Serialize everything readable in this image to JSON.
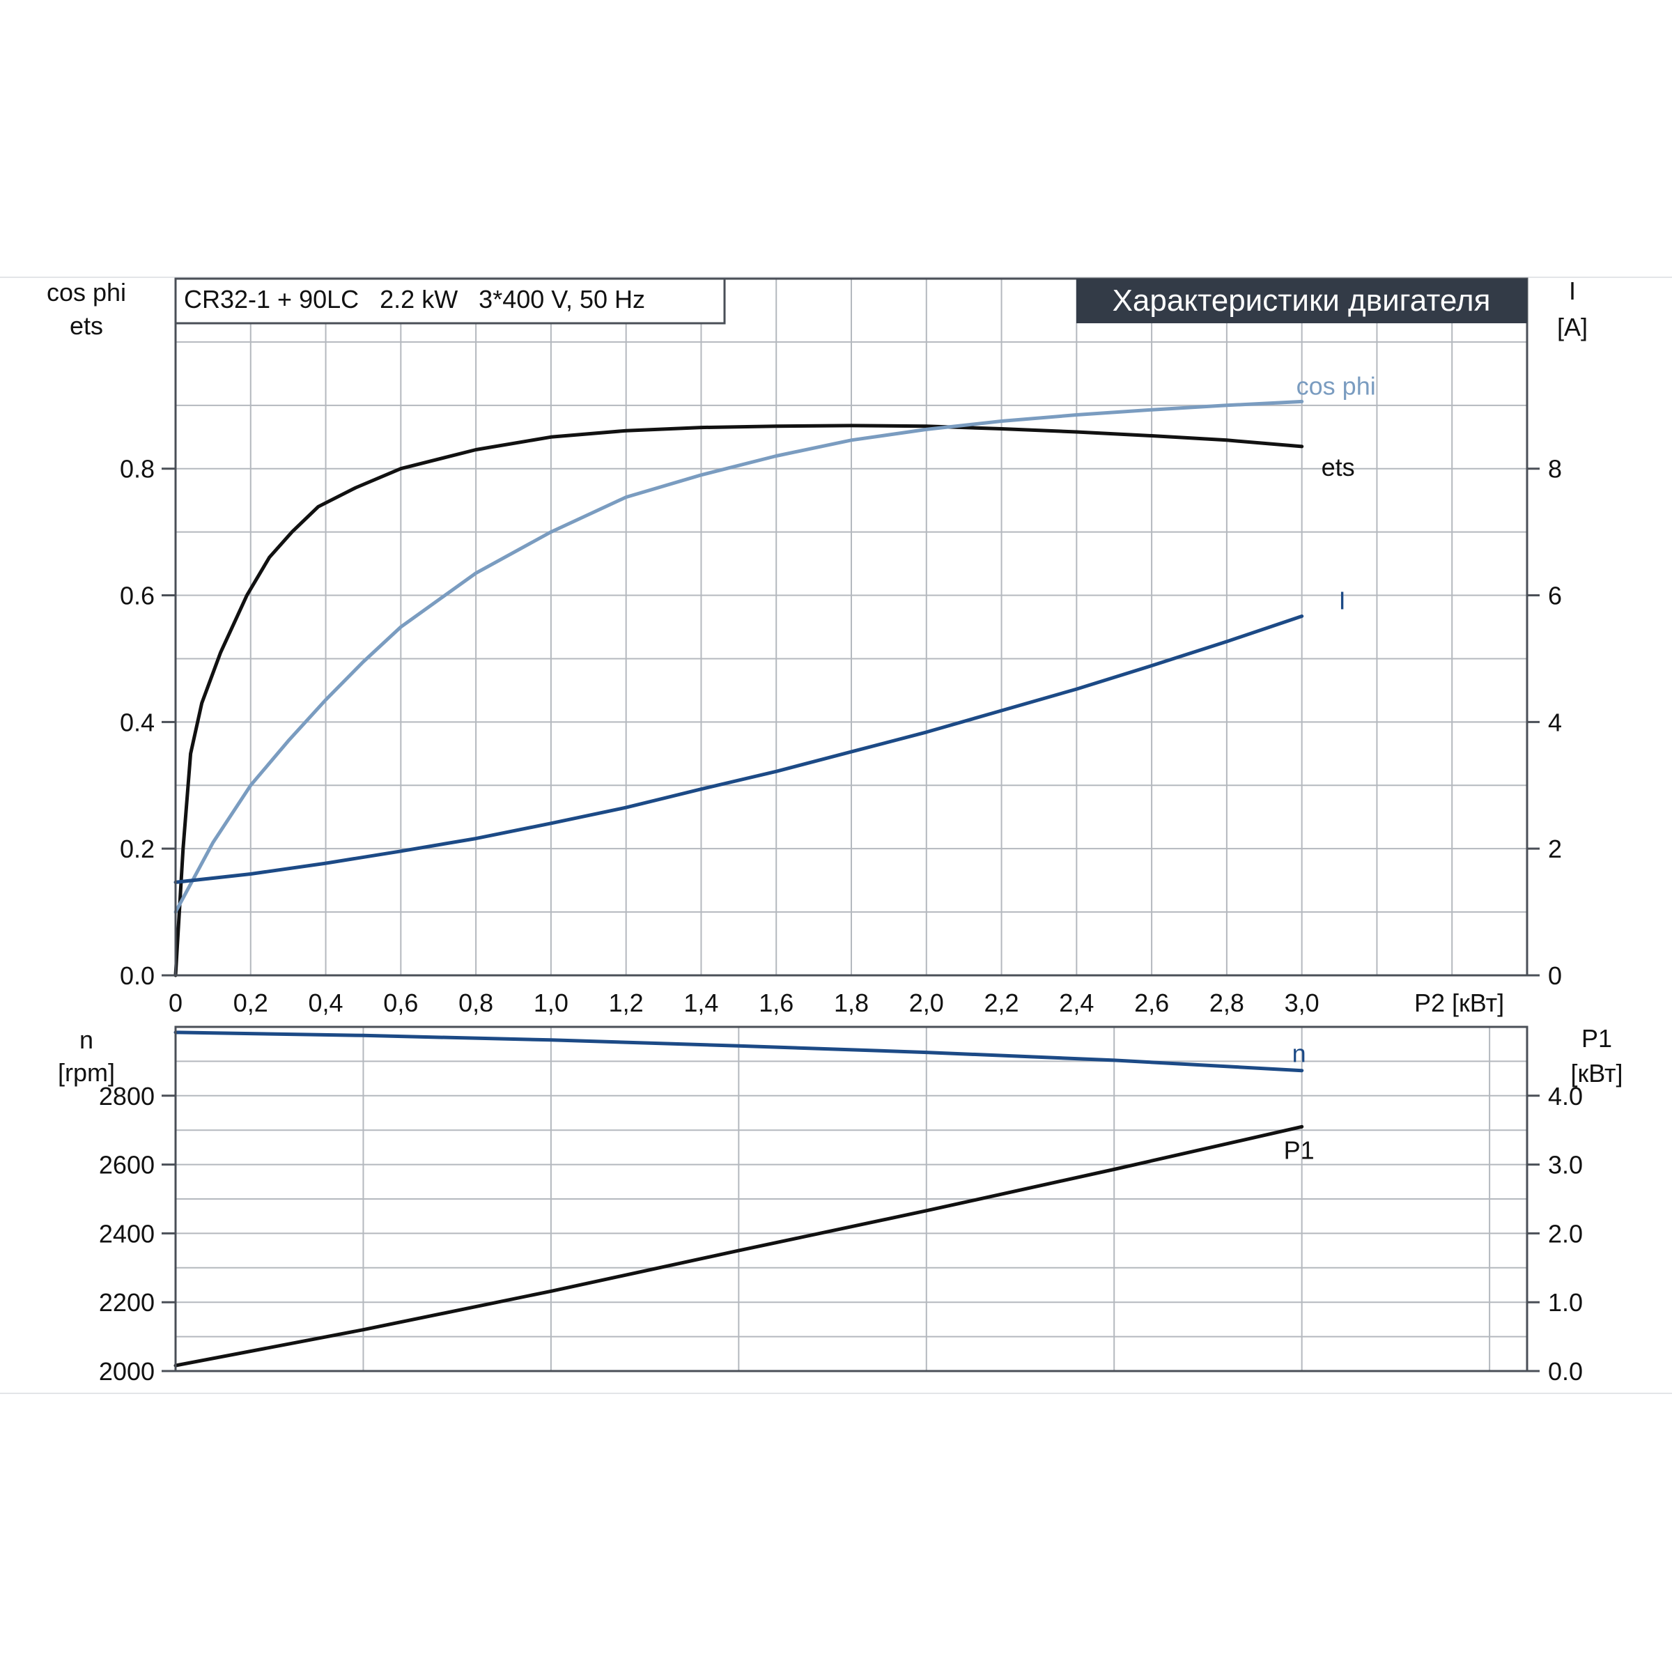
{
  "chart_data": [
    {
      "type": "line",
      "title": "Характеристики двигателя",
      "subtitle": "CR32-1 + 90LC   2.2 kW   3*400 V, 50 Hz",
      "xlabel": "P2 [кВт]",
      "ylabel_left": [
        "cos phi",
        "ets"
      ],
      "ylabel_right": [
        "I",
        "[A]"
      ],
      "xlim": [
        0,
        3.6
      ],
      "ylim_left": [
        0,
        1.1
      ],
      "ylim_right": [
        0,
        11
      ],
      "grid": true,
      "x_ticks": [
        "0",
        "0,2",
        "0,4",
        "0,6",
        "0,8",
        "1,0",
        "1,2",
        "1,4",
        "1,6",
        "1,8",
        "2,0",
        "2,2",
        "2,4",
        "2,6",
        "2,8",
        "3,0"
      ],
      "y_ticks_left": [
        "0.0",
        "0.2",
        "0.4",
        "0.6",
        "0.8"
      ],
      "y_ticks_right": [
        "0",
        "2",
        "4",
        "6",
        "8"
      ],
      "series": [
        {
          "name": "ets",
          "axis": "left",
          "color": "#111111",
          "x": [
            0,
            0.02,
            0.04,
            0.07,
            0.12,
            0.19,
            0.25,
            0.31,
            0.38,
            0.48,
            0.6,
            0.8,
            1.0,
            1.2,
            1.4,
            1.6,
            1.8,
            2.0,
            2.2,
            2.4,
            2.6,
            2.8,
            3.0
          ],
          "y": [
            0,
            0.2,
            0.35,
            0.43,
            0.51,
            0.6,
            0.66,
            0.7,
            0.74,
            0.77,
            0.8,
            0.83,
            0.85,
            0.86,
            0.865,
            0.867,
            0.868,
            0.867,
            0.863,
            0.858,
            0.852,
            0.845,
            0.835
          ]
        },
        {
          "name": "cos phi",
          "axis": "left",
          "color": "#7a9cc0",
          "x": [
            0,
            0.1,
            0.2,
            0.3,
            0.4,
            0.5,
            0.6,
            0.8,
            1.0,
            1.2,
            1.4,
            1.6,
            1.8,
            2.0,
            2.2,
            2.4,
            2.6,
            2.8,
            3.0
          ],
          "y": [
            0.1,
            0.21,
            0.3,
            0.37,
            0.435,
            0.495,
            0.55,
            0.635,
            0.7,
            0.755,
            0.79,
            0.82,
            0.845,
            0.862,
            0.875,
            0.885,
            0.893,
            0.9,
            0.906
          ]
        },
        {
          "name": "I",
          "axis": "right",
          "color": "#1c4a86",
          "x": [
            0,
            0.2,
            0.4,
            0.6,
            0.8,
            1.0,
            1.2,
            1.4,
            1.6,
            1.8,
            2.0,
            2.2,
            2.4,
            2.6,
            2.8,
            3.0
          ],
          "y": [
            1.47,
            1.6,
            1.77,
            1.96,
            2.16,
            2.4,
            2.65,
            2.94,
            3.22,
            3.53,
            3.84,
            4.18,
            4.52,
            4.89,
            5.27,
            5.67
          ]
        }
      ]
    },
    {
      "type": "line",
      "xlim": [
        0,
        3.6
      ],
      "ylabel_left": [
        "n",
        "[rpm]"
      ],
      "ylabel_right": [
        "P1",
        "[кВт]"
      ],
      "ylim_left": [
        2000,
        3000
      ],
      "ylim_right": [
        0,
        5
      ],
      "grid": true,
      "y_ticks_left": [
        "2000",
        "2200",
        "2400",
        "2600",
        "2800"
      ],
      "y_ticks_right": [
        "0.0",
        "1.0",
        "2.0",
        "3.0",
        "4.0"
      ],
      "series": [
        {
          "name": "n",
          "axis": "left",
          "color": "#1c4a86",
          "x": [
            0,
            0.5,
            1.0,
            1.5,
            2.0,
            2.5,
            3.0
          ],
          "y": [
            2984,
            2975,
            2962,
            2945,
            2926,
            2903,
            2873
          ]
        },
        {
          "name": "P1",
          "axis": "right",
          "color": "#111111",
          "x": [
            0,
            0.5,
            1.0,
            1.5,
            2.0,
            2.5,
            3.0
          ],
          "y": [
            0.08,
            0.6,
            1.16,
            1.75,
            2.33,
            2.93,
            3.55
          ]
        }
      ]
    }
  ]
}
